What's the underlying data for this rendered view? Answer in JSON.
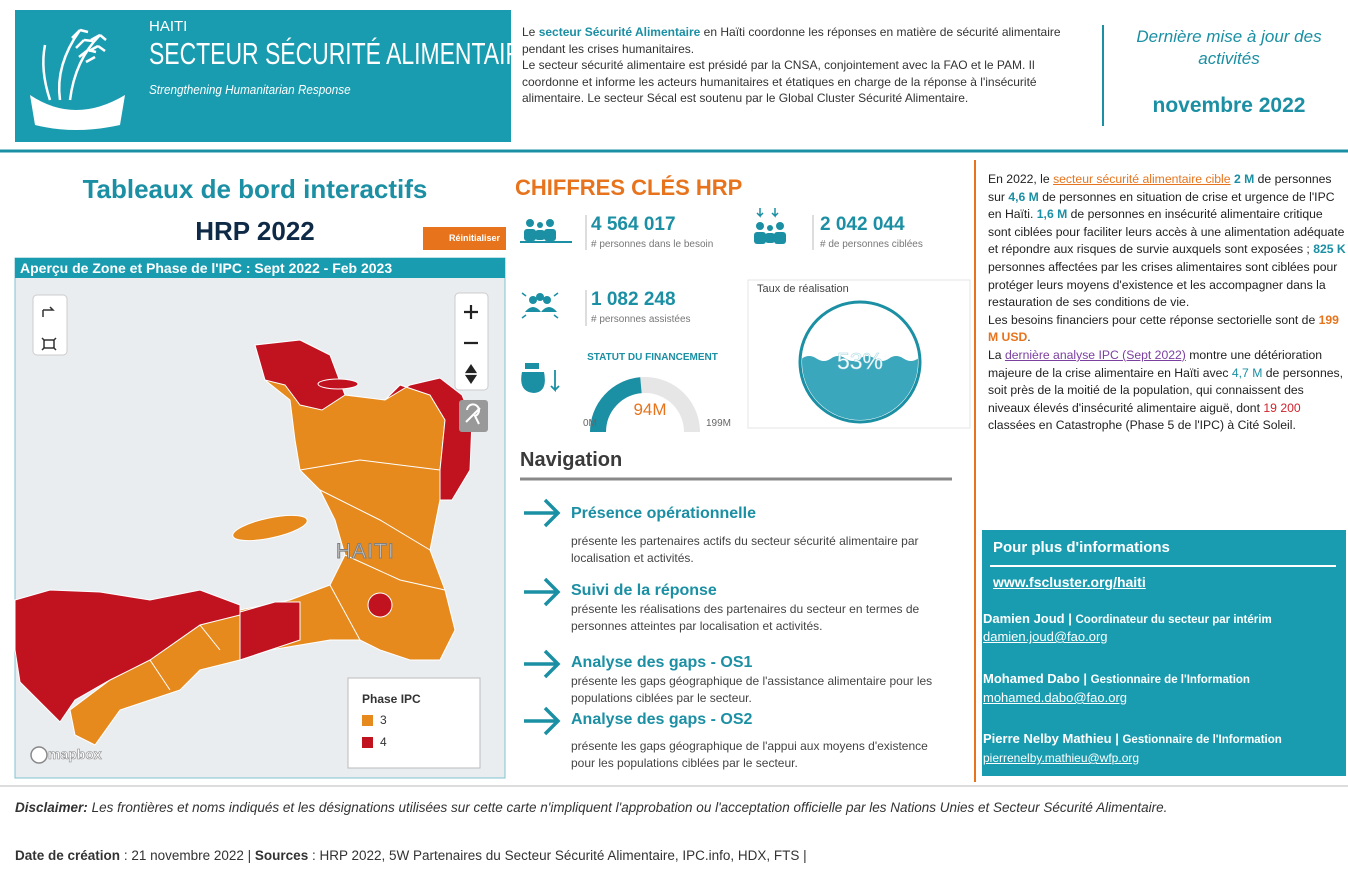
{
  "header": {
    "logo_country": "HAITI",
    "logo_title": "SECTEUR SÉCURITÉ ALIMENTAIRE",
    "logo_tagline": "Strengthening Humanitarian Response",
    "intro": [
      "Le",
      "secteur Sécurité Alimentaire",
      "en Haïti coordonne les réponses en matière de sécurité alimentaire pendant les crises humanitaires.",
      "Le secteur sécurité alimentaire est présidé par la CNSA, conjointement avec la FAO et le PAM. Il coordonne et informe les acteurs humanitaires et étatiques en charge de la réponse à l'insécurité alimentaire. Le secteur Sécal est soutenu par le Global Cluster Sécurité Alimentaire."
    ],
    "update_label": "Dernière mise à jour des activités",
    "update_date": "novembre 2022"
  },
  "dashboard": {
    "title": "Tableaux de bord interactifs",
    "subtitle": "HRP 2022",
    "reset_button": "Réinitialiser"
  },
  "map": {
    "title": "Aperçu de Zone et Phase de l'IPC : Sept 2022 - Feb 2023",
    "country_label": "HAITI",
    "legend_title": "Phase IPC",
    "legend_items": [
      "3",
      "4"
    ],
    "attribution": "mapbox"
  },
  "key_figures": {
    "title": "CHIFFRES CLÉS HRP",
    "kpis": [
      {
        "value": "4 564 017",
        "label": "# personnes dans le besoin"
      },
      {
        "value": "2 042 044",
        "label": "# de personnes ciblées"
      },
      {
        "value": "1 082 248",
        "label": "# personnes assistées"
      }
    ],
    "funding": {
      "title": "STATUT DU FINANCEMENT",
      "min": {
        "value": 0,
        "label": "0M"
      },
      "value": {
        "value": 94,
        "label": "94M"
      },
      "max": {
        "value": 199,
        "label": "199M"
      }
    },
    "rate": {
      "title": "Taux de réalisation",
      "value": {
        "value": 53,
        "label": "53%"
      }
    }
  },
  "navigation": {
    "title": "Navigation",
    "items": [
      {
        "title": "Présence opérationnelle",
        "description": "présente les partenaires actifs du secteur sécurité alimentaire par localisation et activités."
      },
      {
        "title": "Suivi de la réponse",
        "description": "présente les réalisations des partenaires du secteur en termes de personnes atteintes par localisation et activités."
      },
      {
        "title": "Analyse des gaps - OS1",
        "description": "présente les gaps géographique de l'assistance alimentaire pour les populations ciblées par le secteur."
      },
      {
        "title": "Analyse des gaps - OS2",
        "description": "présente les gaps géographique de l'appui aux moyens d'existence pour les populations ciblées par le secteur."
      }
    ]
  },
  "summary": {
    "paragraphs": [
      [
        "En 2022, le",
        "secteur sécurité alimentaire cible",
        "2 M",
        "de personnes sur",
        "4,6 M",
        "de personnes en situation de crise et urgence de l'IPC en Haïti.",
        "1,6 M",
        "de personnes en insécurité alimentaire critique sont ciblées pour faciliter leurs accès à une alimentation adéquate et répondre aux risques de survie auxquels sont exposées ;",
        "825 K",
        "personnes affectées par les crises alimentaires sont ciblées pour protéger leurs moyens d'existence et les accompagner dans la restauration de ses conditions de vie."
      ],
      [
        "Les besoins financiers pour cette réponse sectorielle sont de",
        "199 M USD",
        "."
      ],
      [
        "La",
        "dernière analyse IPC (Sept 2022)",
        "montre une détérioration majeure de la crise alimentaire en Haïti avec",
        "4,7 M",
        "de personnes, soit près de la moitié de la population, qui connaissent des niveaux élevés d'insécurité alimentaire aiguë, dont",
        "19 200",
        "classées en Catastrophe (Phase 5 de l'IPC) à Cité Soleil."
      ]
    ]
  },
  "contact": {
    "title": "Pour plus d'informations",
    "website": "www.fscluster.org/haiti",
    "people": [
      {
        "name": "Damien Joud |",
        "role": "Coordinateur du secteur par intérim",
        "email": "damien.joud@fao.org"
      },
      {
        "name": "Mohamed Dabo |",
        "role": "Gestionnaire de l'Information",
        "email": "mohamed.dabo@fao.org"
      },
      {
        "name": "Pierre Nelby Mathieu |",
        "role": "Gestionnaire de l'Information",
        "email": "pierrenelby.mathieu@wfp.org"
      }
    ]
  },
  "footer": {
    "disclaimer_label": "Disclaimer:",
    "disclaimer": "Les frontières et noms indiqués et les désignations utilisées sur cette carte n'impliquent l'approbation ou l'acceptation officielle par les Nations Unies et Secteur Sécurité Alimentaire.",
    "date_label": "Date de création",
    "date": ": 21 novembre 2022 |",
    "sources_label": "Sources",
    "sources": ": HRP 2022, 5W Partenaires du Secteur Sécurité Alimentaire, IPC.info, HDX, FTS |"
  }
}
